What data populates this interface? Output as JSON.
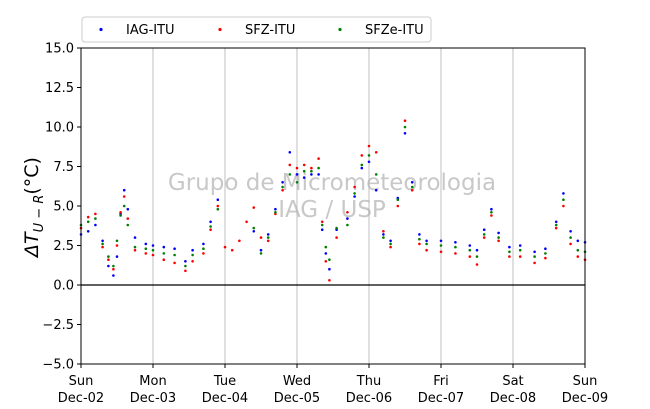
{
  "chart_data": {
    "type": "scatter",
    "title": "",
    "xlabel": "",
    "ylabel_text": "ΔT",
    "ylabel_sub": "U − R",
    "ylabel_unit": "(°C)",
    "ylim": [
      -5.0,
      15.0
    ],
    "yticks": [
      -5.0,
      -2.5,
      0.0,
      2.5,
      5.0,
      7.5,
      10.0,
      12.5,
      15.0
    ],
    "ytick_labels": [
      "−5.0",
      "−2.5",
      "0.0",
      "2.5",
      "5.0",
      "7.5",
      "10.0",
      "12.5",
      "15.0"
    ],
    "xlim": [
      0,
      7
    ],
    "xticks": [
      {
        "x": 0,
        "day": "Sun",
        "date": "Dec-02"
      },
      {
        "x": 1,
        "day": "Mon",
        "date": "Dec-03"
      },
      {
        "x": 2,
        "day": "Tue",
        "date": "Dec-04"
      },
      {
        "x": 3,
        "day": "Wed",
        "date": "Dec-05"
      },
      {
        "x": 4,
        "day": "Thu",
        "date": "Dec-06"
      },
      {
        "x": 5,
        "day": "Fri",
        "date": "Dec-07"
      },
      {
        "x": 6,
        "day": "Sat",
        "date": "Dec-08"
      },
      {
        "x": 7,
        "day": "Sun",
        "date": "Dec-09"
      }
    ],
    "grid": "vertical",
    "zero_line": true,
    "legend_position": "top-left",
    "watermark": [
      "Grupo de Micrometeorologia",
      "IAG / USP"
    ],
    "series": [
      {
        "name": "IAG-ITU",
        "color": "#0000ff",
        "points": [
          [
            0.0,
            3.2
          ],
          [
            0.1,
            3.4
          ],
          [
            0.2,
            3.8
          ],
          [
            0.3,
            2.8
          ],
          [
            0.38,
            1.2
          ],
          [
            0.45,
            0.6
          ],
          [
            0.5,
            1.8
          ],
          [
            0.55,
            4.5
          ],
          [
            0.6,
            6.0
          ],
          [
            0.65,
            4.8
          ],
          [
            0.75,
            3.0
          ],
          [
            0.9,
            2.6
          ],
          [
            1.0,
            2.5
          ],
          [
            1.15,
            2.4
          ],
          [
            1.3,
            2.3
          ],
          [
            1.45,
            1.5
          ],
          [
            1.55,
            2.2
          ],
          [
            1.7,
            2.6
          ],
          [
            1.8,
            4.0
          ],
          [
            1.9,
            5.4
          ],
          [
            2.4,
            3.4
          ],
          [
            2.5,
            2.2
          ],
          [
            2.6,
            3.2
          ],
          [
            2.7,
            4.8
          ],
          [
            2.8,
            6.5
          ],
          [
            2.9,
            8.4
          ],
          [
            3.0,
            7.0
          ],
          [
            3.1,
            6.8
          ],
          [
            3.2,
            7.0
          ],
          [
            3.3,
            7.0
          ],
          [
            3.35,
            3.5
          ],
          [
            3.4,
            2.0
          ],
          [
            3.45,
            1.0
          ],
          [
            3.55,
            3.5
          ],
          [
            3.7,
            4.2
          ],
          [
            3.8,
            5.6
          ],
          [
            3.9,
            7.4
          ],
          [
            4.0,
            7.8
          ],
          [
            4.1,
            6.0
          ],
          [
            4.2,
            3.2
          ],
          [
            4.3,
            2.8
          ],
          [
            4.4,
            5.5
          ],
          [
            4.5,
            9.6
          ],
          [
            4.6,
            6.5
          ],
          [
            4.7,
            3.2
          ],
          [
            4.8,
            2.8
          ],
          [
            5.0,
            2.8
          ],
          [
            5.2,
            2.7
          ],
          [
            5.4,
            2.5
          ],
          [
            5.5,
            2.2
          ],
          [
            5.6,
            3.5
          ],
          [
            5.7,
            4.8
          ],
          [
            5.8,
            3.3
          ],
          [
            5.95,
            2.4
          ],
          [
            6.1,
            2.5
          ],
          [
            6.3,
            2.1
          ],
          [
            6.45,
            2.3
          ],
          [
            6.6,
            4.0
          ],
          [
            6.7,
            5.8
          ],
          [
            6.8,
            3.4
          ],
          [
            6.9,
            2.8
          ],
          [
            7.0,
            2.7
          ]
        ]
      },
      {
        "name": "SFZ-ITU",
        "color": "#ff0000",
        "points": [
          [
            0.0,
            3.6
          ],
          [
            0.1,
            4.3
          ],
          [
            0.2,
            4.5
          ],
          [
            0.3,
            2.4
          ],
          [
            0.38,
            1.6
          ],
          [
            0.45,
            1.0
          ],
          [
            0.5,
            2.5
          ],
          [
            0.55,
            4.6
          ],
          [
            0.6,
            5.6
          ],
          [
            0.65,
            4.2
          ],
          [
            0.75,
            2.2
          ],
          [
            0.9,
            2.0
          ],
          [
            1.0,
            1.9
          ],
          [
            1.15,
            1.6
          ],
          [
            1.3,
            1.4
          ],
          [
            1.45,
            0.9
          ],
          [
            1.55,
            1.5
          ],
          [
            1.7,
            2.0
          ],
          [
            1.8,
            3.5
          ],
          [
            1.9,
            5.0
          ],
          [
            2.0,
            2.4
          ],
          [
            2.1,
            2.2
          ],
          [
            2.2,
            2.8
          ],
          [
            2.3,
            4.0
          ],
          [
            2.4,
            4.9
          ],
          [
            2.5,
            3.0
          ],
          [
            2.6,
            2.8
          ],
          [
            2.7,
            4.5
          ],
          [
            2.8,
            6.0
          ],
          [
            2.9,
            7.6
          ],
          [
            3.0,
            7.4
          ],
          [
            3.1,
            7.6
          ],
          [
            3.2,
            7.4
          ],
          [
            3.3,
            8.0
          ],
          [
            3.35,
            4.0
          ],
          [
            3.4,
            1.5
          ],
          [
            3.45,
            0.3
          ],
          [
            3.55,
            3.0
          ],
          [
            3.7,
            4.6
          ],
          [
            3.8,
            6.2
          ],
          [
            3.9,
            8.2
          ],
          [
            4.0,
            8.8
          ],
          [
            4.1,
            8.4
          ],
          [
            4.2,
            3.4
          ],
          [
            4.3,
            2.4
          ],
          [
            4.4,
            5.0
          ],
          [
            4.5,
            10.4
          ],
          [
            4.6,
            6.0
          ],
          [
            4.7,
            2.6
          ],
          [
            4.8,
            2.2
          ],
          [
            5.0,
            2.1
          ],
          [
            5.2,
            2.0
          ],
          [
            5.4,
            1.8
          ],
          [
            5.5,
            1.3
          ],
          [
            5.6,
            3.0
          ],
          [
            5.7,
            4.4
          ],
          [
            5.8,
            2.8
          ],
          [
            5.95,
            1.8
          ],
          [
            6.1,
            1.8
          ],
          [
            6.3,
            1.4
          ],
          [
            6.45,
            1.7
          ],
          [
            6.6,
            3.6
          ],
          [
            6.7,
            5.0
          ],
          [
            6.8,
            2.6
          ],
          [
            6.9,
            1.8
          ],
          [
            7.0,
            1.6
          ]
        ]
      },
      {
        "name": "SFZe-ITU",
        "color": "#008000",
        "points": [
          [
            0.0,
            3.8
          ],
          [
            0.1,
            4.0
          ],
          [
            0.2,
            4.2
          ],
          [
            0.3,
            2.6
          ],
          [
            0.38,
            1.8
          ],
          [
            0.45,
            1.2
          ],
          [
            0.5,
            2.8
          ],
          [
            0.55,
            4.4
          ],
          [
            0.6,
            5.0
          ],
          [
            0.65,
            3.8
          ],
          [
            0.75,
            2.4
          ],
          [
            0.9,
            2.3
          ],
          [
            1.0,
            2.2
          ],
          [
            1.15,
            2.0
          ],
          [
            1.3,
            1.9
          ],
          [
            1.45,
            1.2
          ],
          [
            1.55,
            1.9
          ],
          [
            1.7,
            2.3
          ],
          [
            1.8,
            3.7
          ],
          [
            1.9,
            4.8
          ],
          [
            2.4,
            3.6
          ],
          [
            2.5,
            2.0
          ],
          [
            2.6,
            3.0
          ],
          [
            2.7,
            4.6
          ],
          [
            2.8,
            6.2
          ],
          [
            2.9,
            7.0
          ],
          [
            3.0,
            6.5
          ],
          [
            3.1,
            7.2
          ],
          [
            3.2,
            7.2
          ],
          [
            3.3,
            7.4
          ],
          [
            3.35,
            3.8
          ],
          [
            3.4,
            2.4
          ],
          [
            3.45,
            1.6
          ],
          [
            3.55,
            3.6
          ],
          [
            3.7,
            3.8
          ],
          [
            3.8,
            5.8
          ],
          [
            3.9,
            7.6
          ],
          [
            4.0,
            8.2
          ],
          [
            4.1,
            7.0
          ],
          [
            4.2,
            3.0
          ],
          [
            4.3,
            2.6
          ],
          [
            4.4,
            5.4
          ],
          [
            4.5,
            10.0
          ],
          [
            4.6,
            6.2
          ],
          [
            4.7,
            2.9
          ],
          [
            4.8,
            2.6
          ],
          [
            5.0,
            2.5
          ],
          [
            5.2,
            2.4
          ],
          [
            5.4,
            2.2
          ],
          [
            5.5,
            1.8
          ],
          [
            5.6,
            3.2
          ],
          [
            5.7,
            4.6
          ],
          [
            5.8,
            3.0
          ],
          [
            5.95,
            2.1
          ],
          [
            6.1,
            2.2
          ],
          [
            6.3,
            1.8
          ],
          [
            6.45,
            2.0
          ],
          [
            6.6,
            3.8
          ],
          [
            6.7,
            5.4
          ],
          [
            6.8,
            3.0
          ],
          [
            6.9,
            2.2
          ],
          [
            7.0,
            2.1
          ]
        ]
      }
    ]
  }
}
